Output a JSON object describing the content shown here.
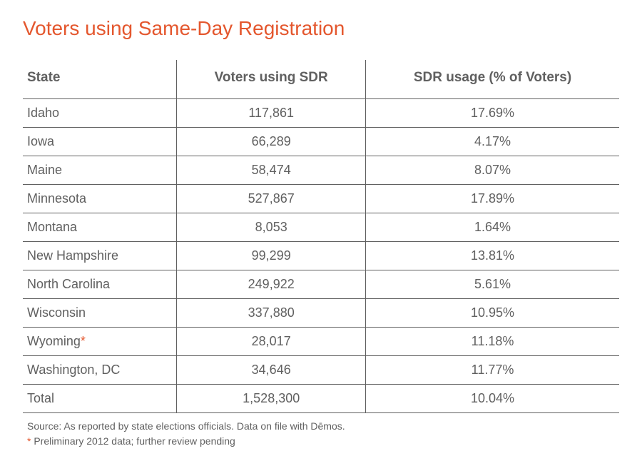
{
  "title": "Voters using Same-Day Registration",
  "title_color": "#e4572e",
  "title_fontsize": 28,
  "table": {
    "type": "table",
    "text_color": "#606060",
    "header_fontsize": 19,
    "cell_fontsize": 18,
    "border_color": "#606060",
    "columns": [
      "State",
      "Voters using SDR",
      "SDR usage (% of Voters)"
    ],
    "column_align": [
      "left",
      "center",
      "center"
    ],
    "rows": [
      {
        "state": "Idaho",
        "voters": "117,861",
        "pct": "17.69%",
        "flag": false
      },
      {
        "state": "Iowa",
        "voters": "66,289",
        "pct": "4.17%",
        "flag": false
      },
      {
        "state": "Maine",
        "voters": "58,474",
        "pct": "8.07%",
        "flag": false
      },
      {
        "state": "Minnesota",
        "voters": "527,867",
        "pct": "17.89%",
        "flag": false
      },
      {
        "state": "Montana",
        "voters": "8,053",
        "pct": "1.64%",
        "flag": false
      },
      {
        "state": "New Hampshire",
        "voters": "99,299",
        "pct": "13.81%",
        "flag": false
      },
      {
        "state": "North Carolina",
        "voters": "249,922",
        "pct": "5.61%",
        "flag": false
      },
      {
        "state": "Wisconsin",
        "voters": "337,880",
        "pct": "10.95%",
        "flag": false
      },
      {
        "state": "Wyoming",
        "voters": "28,017",
        "pct": "11.18%",
        "flag": true
      },
      {
        "state": "Washington, DC",
        "voters": "34,646",
        "pct": "11.77%",
        "flag": false
      },
      {
        "state": "Total",
        "voters": "1,528,300",
        "pct": "10.04%",
        "flag": false
      }
    ]
  },
  "footnote": {
    "source_text": "Source: As reported by state elections officials. Data on file with Dēmos.",
    "asterisk_mark": "*",
    "asterisk_color": "#e4572e",
    "asterisk_text": " Preliminary 2012 data; further review pending",
    "fontsize": 14,
    "color": "#606060"
  }
}
